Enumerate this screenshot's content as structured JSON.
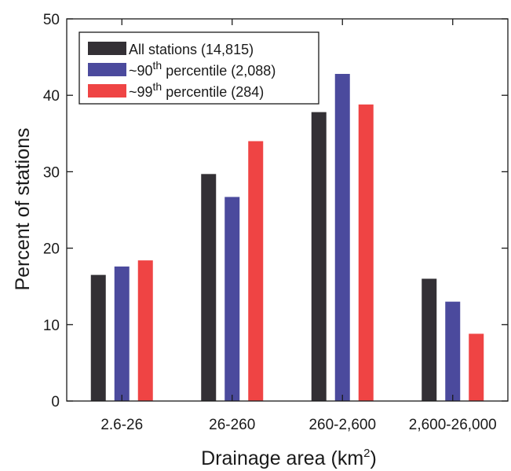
{
  "chart_data": {
    "type": "bar",
    "categories": [
      "2.6-26",
      "26-260",
      "260-2,600",
      "2,600-26,000"
    ],
    "series": [
      {
        "name": "All stations (14,815)",
        "legend_prefix": "All stations (14,815)",
        "legend_sup": "",
        "legend_suffix": "",
        "color": "#333035",
        "values": [
          16.5,
          29.7,
          37.8,
          16.0
        ]
      },
      {
        "name": "~90th percentile (2,088)",
        "legend_prefix": "~90",
        "legend_sup": "th",
        "legend_suffix": " percentile (2,088)",
        "color": "#4b4a9d",
        "values": [
          17.6,
          26.7,
          42.8,
          13.0
        ]
      },
      {
        "name": "~99th percentile (284)",
        "legend_prefix": "~99",
        "legend_sup": "th",
        "legend_suffix": " percentile (284)",
        "color": "#ef4444",
        "values": [
          18.4,
          34.0,
          38.8,
          8.8
        ]
      }
    ],
    "xlabel": "Drainage area (km",
    "xlabel_sup": "2",
    "xlabel_close": ")",
    "ylabel": "Percent of stations",
    "ylim": [
      0,
      50
    ],
    "yticks": [
      "0",
      "10",
      "20",
      "30",
      "40",
      "50"
    ],
    "grid": false,
    "legend_position": "top-left"
  }
}
